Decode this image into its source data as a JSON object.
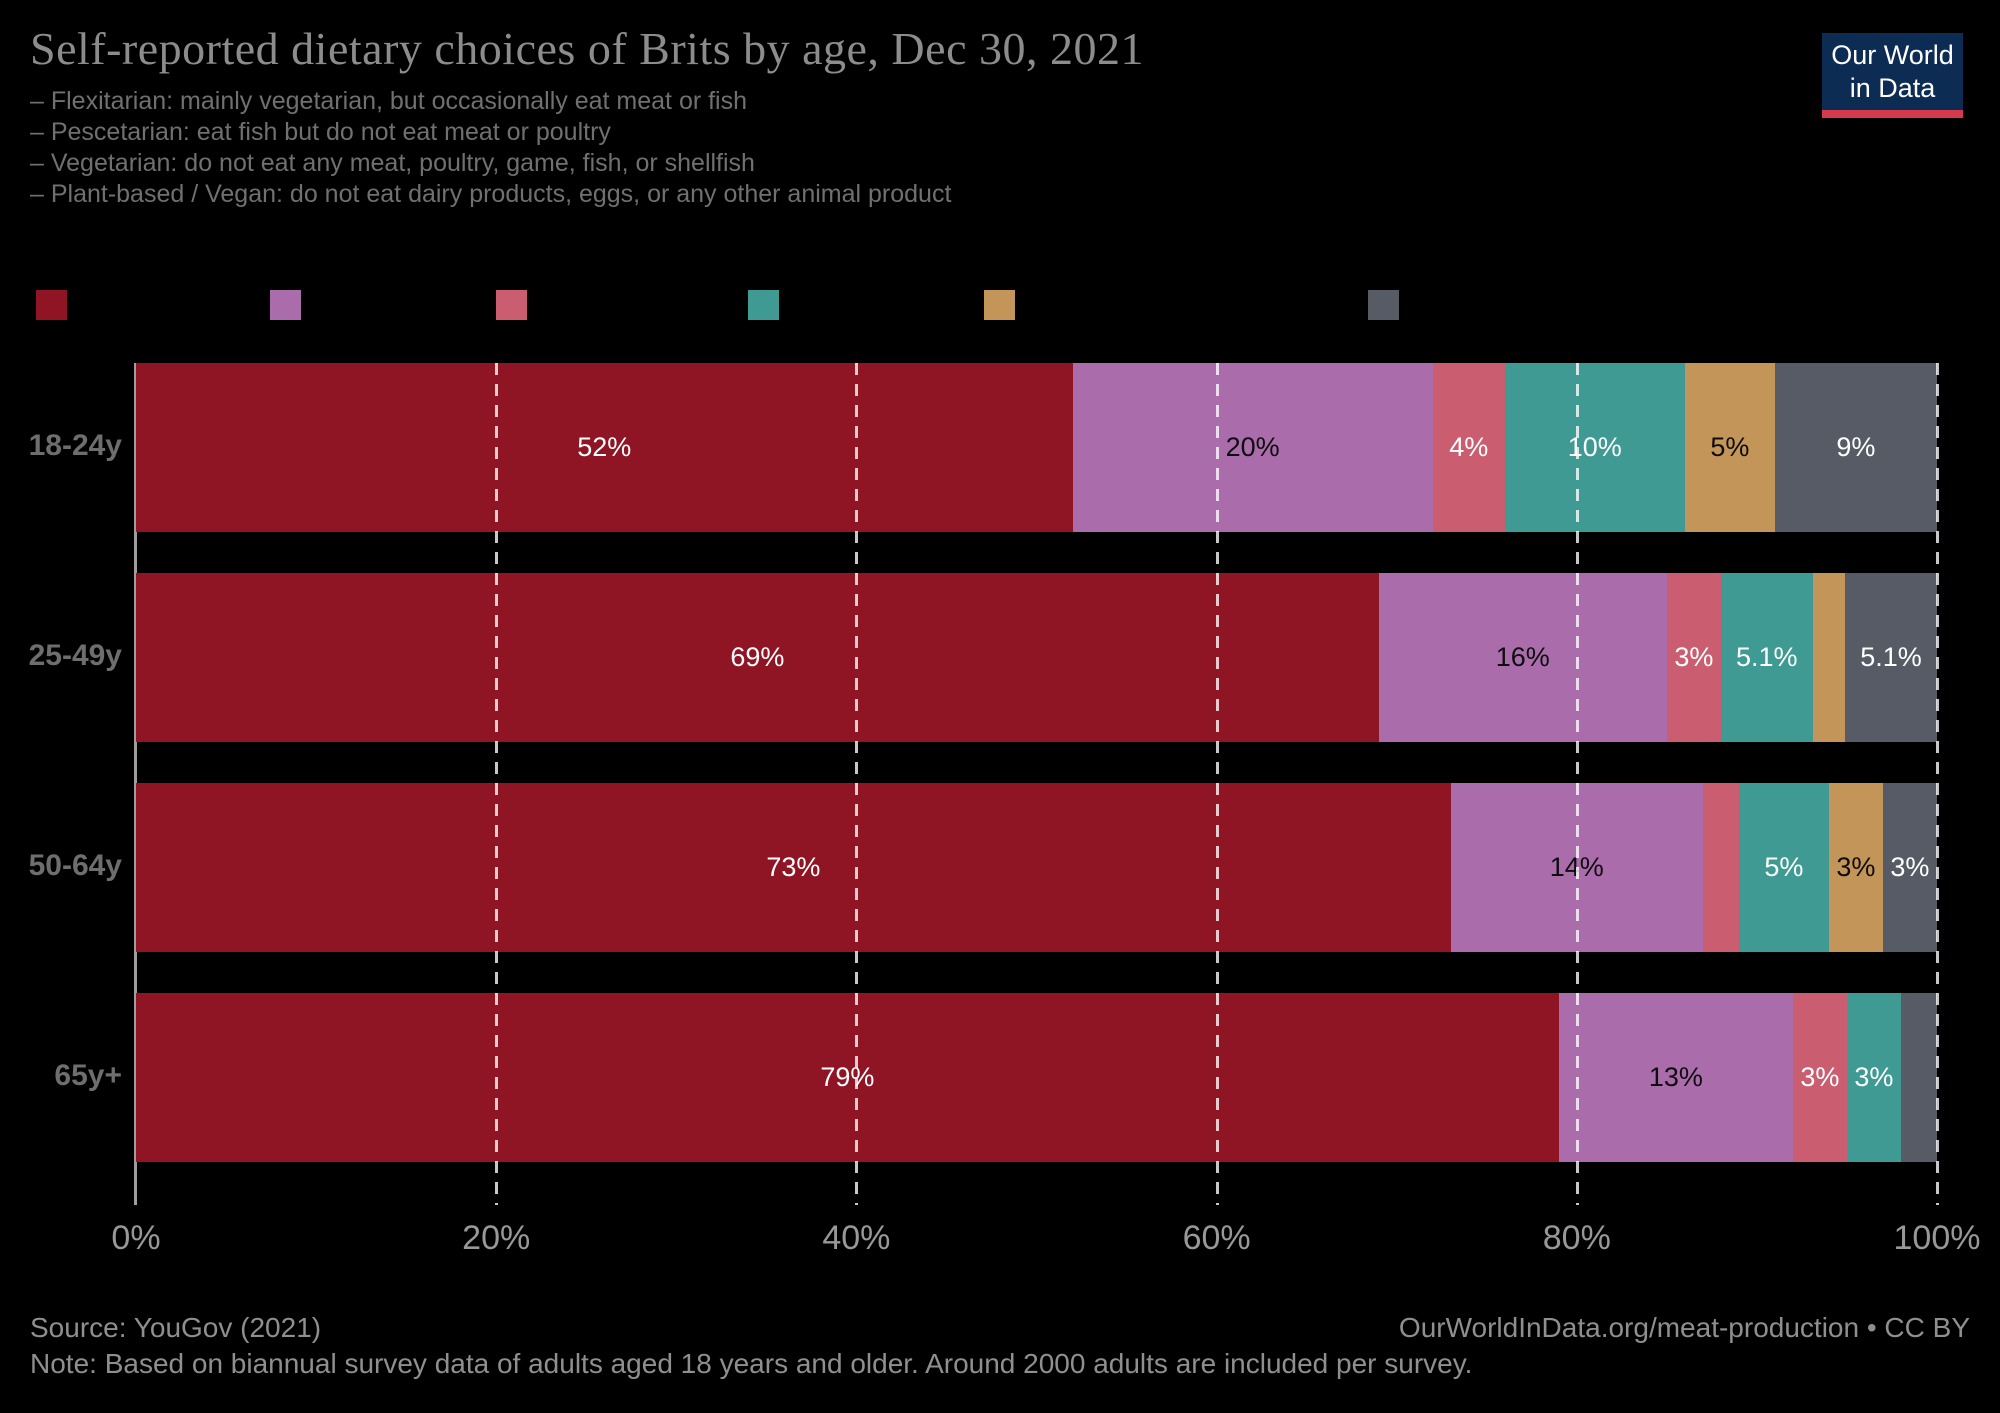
{
  "header": {
    "title": "Self-reported dietary choices of Brits by age, Dec 30, 2021",
    "subtitle_lines": [
      "– Flexitarian: mainly vegetarian, but occasionally eat meat or fish",
      "– Pescetarian: eat fish but do not eat meat or poultry",
      "– Vegetarian: do not eat any meat, poultry, game, fish, or shellfish",
      "– Plant-based / Vegan: do not eat dairy products, eggs, or any other animal product"
    ]
  },
  "logo": {
    "line1": "Our World",
    "line2": "in Data",
    "bg_color": "#0C2C54",
    "accent_color": "#D4394C"
  },
  "chart_data": {
    "type": "bar",
    "stacked": true,
    "orientation": "horizontal",
    "categories": [
      "18-24y",
      "25-49y",
      "50-64y",
      "65y+"
    ],
    "series": [
      {
        "name": "dark-red",
        "color": "#8F1524",
        "label_color": "#ffffff",
        "values": [
          52,
          69,
          73,
          79
        ],
        "labels": [
          "52%",
          "69%",
          "73%",
          "79%"
        ]
      },
      {
        "name": "purple",
        "color": "#AB6CAC",
        "label_color": "#0d0d0d",
        "values": [
          20,
          16,
          14,
          13
        ],
        "labels": [
          "20%",
          "16%",
          "14%",
          "13%"
        ]
      },
      {
        "name": "pink",
        "color": "#CA5E70",
        "label_color": "#ffffff",
        "values": [
          4,
          3,
          2,
          3
        ],
        "labels": [
          "4%",
          "3%",
          "",
          "3%"
        ]
      },
      {
        "name": "teal",
        "color": "#3E9A92",
        "label_color": "#ffffff",
        "values": [
          10,
          5.1,
          5,
          3
        ],
        "labels": [
          "10%",
          "5.1%",
          "5%",
          "3%"
        ]
      },
      {
        "name": "tan",
        "color": "#C39558",
        "label_color": "#0d0d0d",
        "values": [
          5,
          1.8,
          3,
          0
        ],
        "labels": [
          "5%",
          "",
          "3%",
          ""
        ]
      },
      {
        "name": "gray",
        "color": "#575B65",
        "label_color": "#ffffff",
        "values": [
          9,
          5.1,
          3,
          2
        ],
        "labels": [
          "9%",
          "5.1%",
          "3%",
          ""
        ]
      }
    ],
    "x_ticks": [
      "0%",
      "20%",
      "40%",
      "60%",
      "80%",
      "100%"
    ],
    "x_tick_values": [
      0,
      20,
      40,
      60,
      80,
      100
    ],
    "xlim": [
      0,
      100
    ],
    "grid": "dashed-white-verticals",
    "legend_position": "top",
    "legend_labels_visible": false
  },
  "footer": {
    "source": "Source: YouGov (2021)",
    "note": "Note: Based on biannual survey data of adults aged 18 years and older. Around 2000 adults are included per survey.",
    "attribution": "OurWorldInData.org/meat-production • CC BY"
  }
}
